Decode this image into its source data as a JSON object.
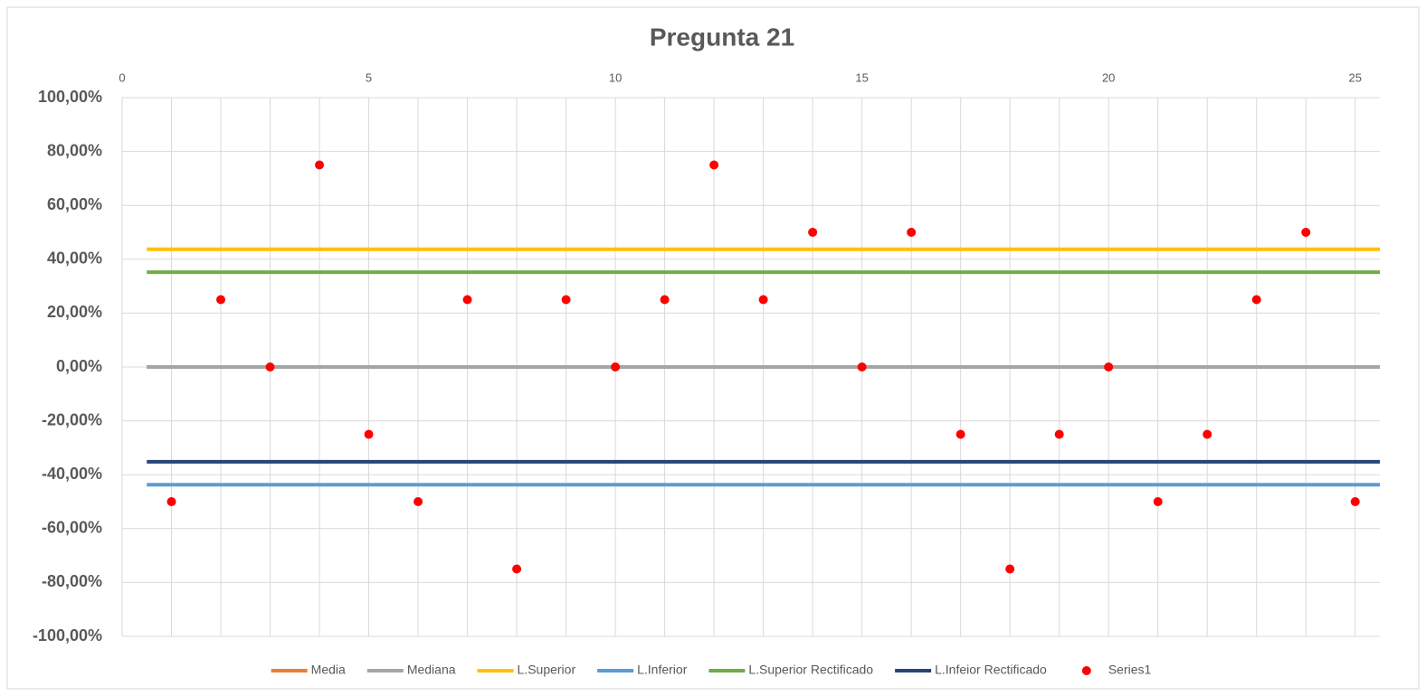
{
  "chart_data": {
    "type": "scatter",
    "title": "Pregunta 21",
    "xlim": [
      0,
      25.5
    ],
    "xticks": [
      0,
      5,
      10,
      15,
      20,
      25
    ],
    "xgrid": [
      1,
      2,
      3,
      4,
      5,
      6,
      7,
      8,
      9,
      10,
      11,
      12,
      13,
      14,
      15,
      16,
      17,
      18,
      19,
      20,
      21,
      22,
      23,
      24,
      25
    ],
    "ylim": [
      -100,
      100
    ],
    "yticks": [
      {
        "value": -100,
        "label": "-100,00%"
      },
      {
        "value": -80,
        "label": "-80,00%"
      },
      {
        "value": -60,
        "label": "-60,00%"
      },
      {
        "value": -40,
        "label": "-40,00%"
      },
      {
        "value": -20,
        "label": "-20,00%"
      },
      {
        "value": 0,
        "label": "0,00%"
      },
      {
        "value": 20,
        "label": "20,00%"
      },
      {
        "value": 40,
        "label": "40,00%"
      },
      {
        "value": 60,
        "label": "60,00%"
      },
      {
        "value": 80,
        "label": "80,00%"
      },
      {
        "value": 100,
        "label": "100,00%"
      }
    ],
    "grid": true,
    "legend": "bottom",
    "series": [
      {
        "name": "Media",
        "color": "#ed7d31",
        "kind": "line",
        "x": [
          0.5,
          25.5
        ],
        "values": [
          0,
          0
        ]
      },
      {
        "name": "Mediana",
        "color": "#a5a5a5",
        "kind": "line",
        "x": [
          0.5,
          25.5
        ],
        "values": [
          0,
          0
        ]
      },
      {
        "name": "L.Superior",
        "color": "#ffc000",
        "kind": "line",
        "x": [
          0.5,
          25.5
        ],
        "values": [
          43.7,
          43.7
        ]
      },
      {
        "name": "L.Inferior",
        "color": "#5b9bd5",
        "kind": "line",
        "x": [
          0.5,
          25.5
        ],
        "values": [
          -43.7,
          -43.7
        ]
      },
      {
        "name": "L.Superior Rectificado",
        "color": "#70ad47",
        "kind": "line",
        "x": [
          0.5,
          25.5
        ],
        "values": [
          35.2,
          35.2
        ]
      },
      {
        "name": "L.Infeior Rectificado",
        "color": "#264478",
        "kind": "line",
        "x": [
          0.5,
          25.5
        ],
        "values": [
          -35.2,
          -35.2
        ]
      },
      {
        "name": "Series1",
        "color": "#ff0000",
        "kind": "marker",
        "x": [
          1,
          2,
          3,
          4,
          5,
          6,
          7,
          8,
          9,
          10,
          11,
          12,
          13,
          14,
          15,
          16,
          17,
          18,
          19,
          20,
          21,
          22,
          23,
          24,
          25
        ],
        "values": [
          -50,
          25,
          0,
          75,
          -25,
          -50,
          25,
          -75,
          25,
          0,
          25,
          75,
          25,
          50,
          0,
          50,
          -25,
          -75,
          -25,
          0,
          -50,
          -25,
          25,
          50,
          -50
        ]
      }
    ]
  }
}
